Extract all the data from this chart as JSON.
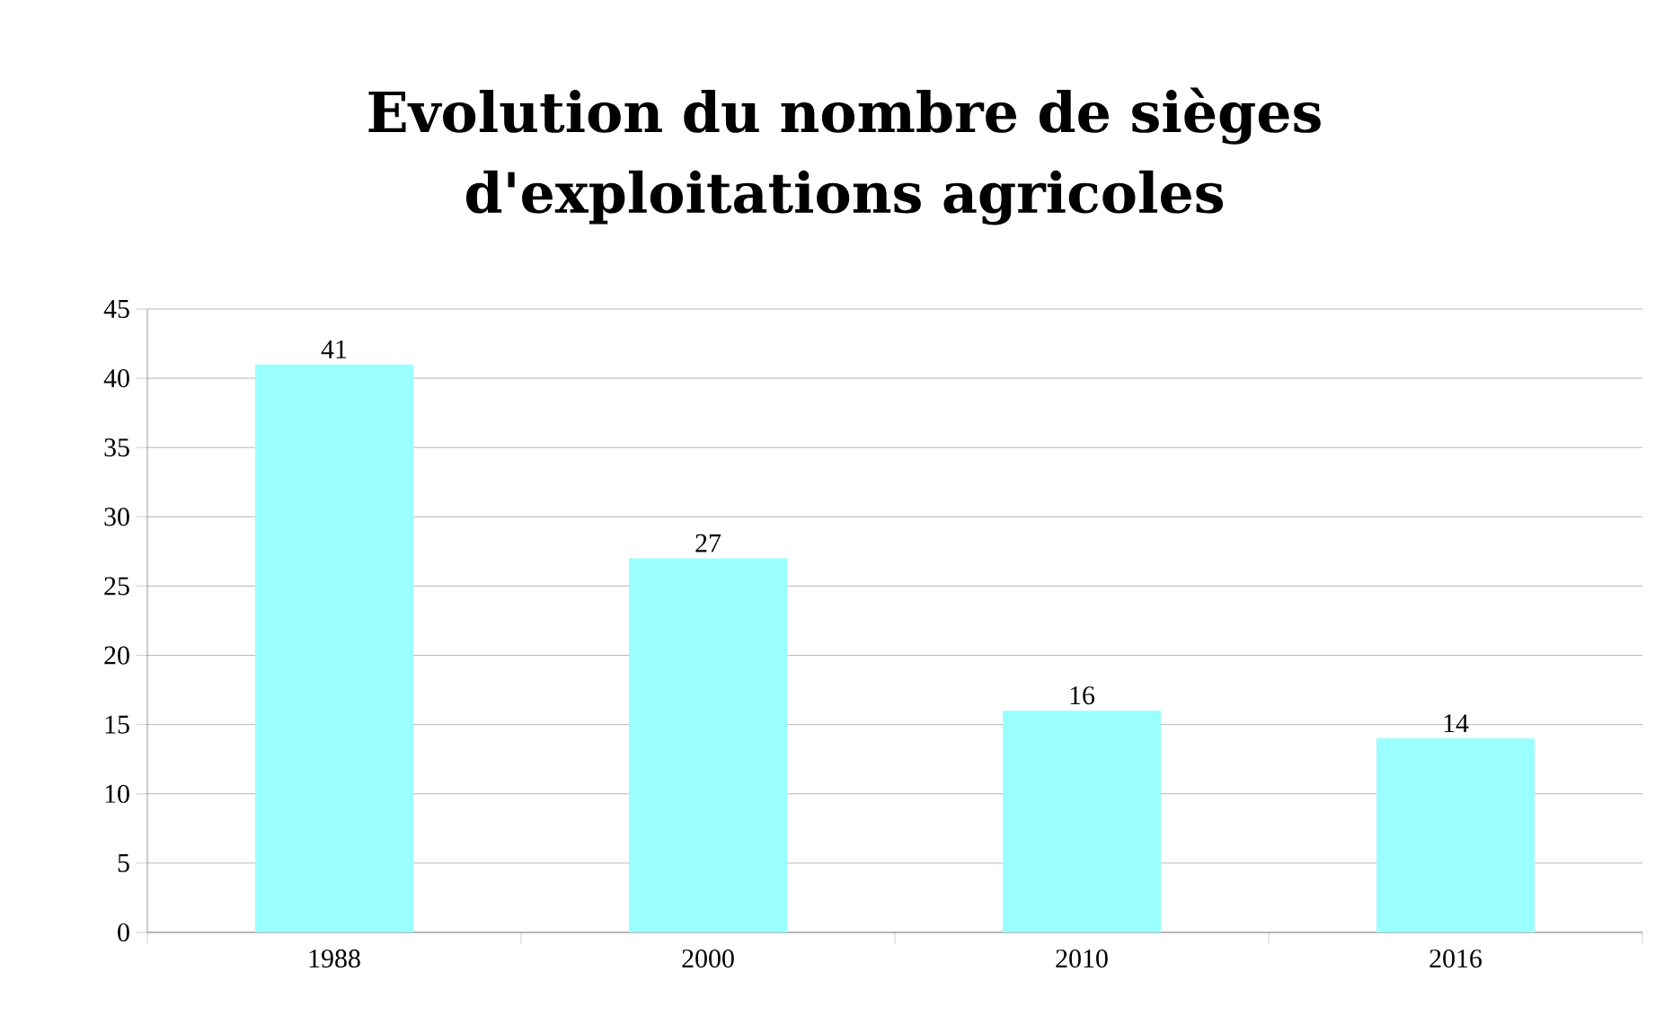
{
  "chart_data": {
    "type": "bar",
    "title": "Evolution du nombre de sièges d'exploitations agricoles",
    "categories": [
      "1988",
      "2000",
      "2010",
      "2016"
    ],
    "values": [
      41,
      27,
      16,
      14
    ],
    "color": "#99ffff",
    "ylim": [
      0,
      45
    ],
    "yticks": [
      0,
      5,
      10,
      15,
      20,
      25,
      30,
      35,
      40,
      45
    ],
    "grid": "y",
    "data_labels": true
  }
}
